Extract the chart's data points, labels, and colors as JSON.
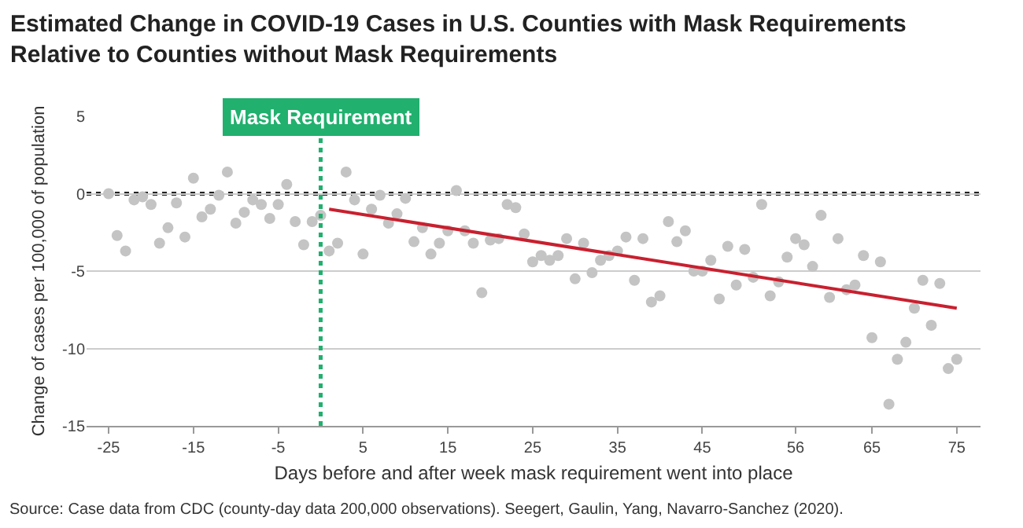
{
  "chart_data": {
    "type": "scatter",
    "title": "Estimated Change in COVID-19 Cases in U.S. Counties with Mask Requirements\nRelative to Counties without Mask Requirements",
    "xlabel": "Days before and after week mask requirement went into place",
    "ylabel": "Change of cases per 100,000 of population",
    "annotations": [
      "Source: Case data from CDC (county-day data 200,000 observations). Seegert, Gaulin, Yang, Navarro-Sanchez (2020)."
    ],
    "series": [
      {
        "color": "#c4c4c4",
        "marker": "circle",
        "x": [
          -25,
          -24,
          -23,
          -22,
          -21,
          -20,
          -19,
          -18,
          -17,
          -16,
          -15,
          -14,
          -13,
          -12,
          -11,
          -10,
          -9,
          -8,
          -7,
          -6,
          -5,
          -4,
          -3,
          -2,
          -1,
          0,
          1,
          2,
          3,
          4,
          5,
          6,
          7,
          8,
          9,
          10,
          11,
          12,
          13,
          14,
          15,
          16,
          17,
          18,
          19,
          20,
          21,
          22,
          23,
          24,
          25,
          26,
          27,
          28,
          29,
          30,
          31,
          32,
          33,
          34,
          35,
          36,
          37,
          38,
          39,
          40,
          41,
          42,
          43,
          44,
          45,
          46,
          47,
          48,
          49,
          50,
          51,
          52,
          53,
          54,
          55,
          56,
          57,
          58,
          59,
          60,
          61,
          62,
          63,
          64,
          65,
          66,
          67,
          68,
          69,
          70,
          71,
          72,
          73,
          74,
          75
        ],
        "values": [
          0.0,
          -2.7,
          -3.7,
          -0.4,
          -0.2,
          -0.7,
          -3.2,
          -2.2,
          -0.6,
          -2.8,
          1.0,
          -1.5,
          -1.0,
          -0.1,
          1.4,
          -1.9,
          -1.2,
          -0.4,
          -0.7,
          -1.6,
          -0.7,
          0.6,
          -1.8,
          -3.3,
          -1.8,
          -1.4,
          -3.7,
          -3.2,
          1.4,
          -0.4,
          -3.9,
          -1.0,
          -0.1,
          -1.9,
          -1.3,
          -0.3,
          -3.1,
          -2.2,
          -3.9,
          -3.2,
          -2.4,
          0.2,
          -2.4,
          -3.2,
          -6.4,
          -3.0,
          -2.9,
          -0.7,
          -0.9,
          -2.6,
          -4.4,
          -4.0,
          -4.3,
          -4.0,
          -2.9,
          -5.5,
          -3.2,
          -5.1,
          -4.3,
          -4.0,
          -3.7,
          -2.8,
          -5.6,
          -2.9,
          -7.0,
          -6.6,
          -1.8,
          -3.1,
          -2.4,
          -5.0,
          -5.0,
          -4.3,
          -6.8,
          -3.4,
          -5.9,
          -3.6,
          -5.4,
          -0.7,
          -6.6,
          -5.7,
          -4.1,
          -2.9,
          -3.3,
          -4.7,
          -1.4,
          -6.7,
          -2.9,
          -6.2,
          -5.9,
          -4.0,
          -9.3,
          -4.4,
          -13.6,
          -10.7,
          -9.6,
          -7.4,
          -5.6,
          -8.5,
          -5.8,
          -11.3,
          -10.7
        ]
      },
      {
        "type": "line",
        "color": "#c8202f",
        "line_style": "solid",
        "x": [
          1,
          75
        ],
        "values": [
          -1.0,
          -7.4
        ]
      }
    ],
    "ref_lines": [
      {
        "axis": "x",
        "value": 0,
        "label": "Mask Requirement",
        "color": "#21b06e",
        "line_style": "dotted"
      },
      {
        "axis": "y",
        "value": 0,
        "color": "#222222",
        "line_style": "dotted"
      }
    ],
    "xlim": [
      -27.6,
      77.8
    ],
    "ylim": [
      -15,
      5
    ],
    "xticks": [
      -25,
      -15,
      -5,
      5,
      15,
      25,
      35,
      45,
      56,
      65,
      75
    ],
    "yticks": [
      -15,
      -10,
      -5,
      0,
      5
    ],
    "grid": "y",
    "legend": false
  }
}
